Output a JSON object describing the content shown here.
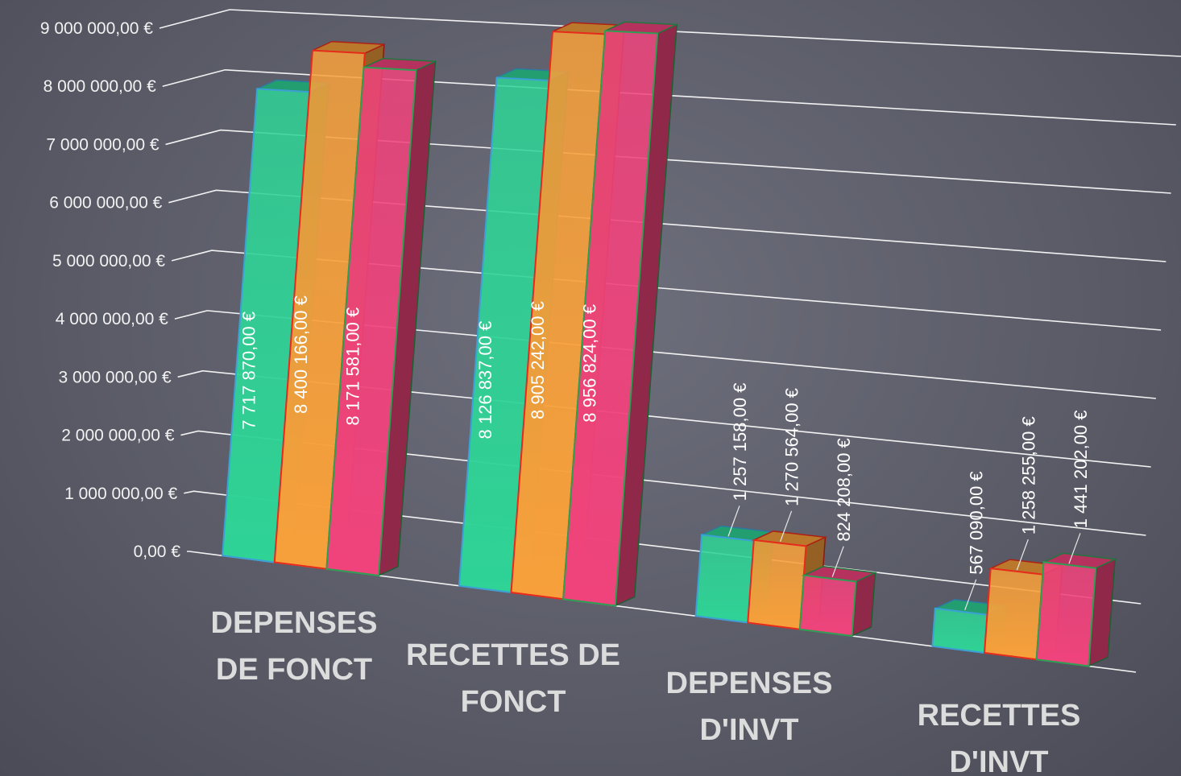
{
  "chart_data": {
    "type": "bar3d",
    "categories": [
      "DEPENSES DE FONCT",
      "RECETTES DE FONCT",
      "DEPENSES D'INVT",
      "RECETTES D'INVT"
    ],
    "series": [
      {
        "color": "#2fd396",
        "edge": "#3c9fd6",
        "values": [
          7717870,
          8126837,
          1257158,
          567090
        ],
        "value_labels": [
          "7 717 870,00 €",
          "8 126 837,00 €",
          "1 257 158,00 €",
          "567 090,00 €"
        ]
      },
      {
        "color": "#f7a03b",
        "edge": "#e62a1c",
        "values": [
          8400166,
          8905242,
          1270564,
          1258255
        ],
        "value_labels": [
          "8 400 166,00 €",
          "8 905 242,00 €",
          "1 270 564,00 €",
          "1 258 255,00 €"
        ]
      },
      {
        "color": "#f0437c",
        "edge": "#2e9e52",
        "values": [
          8171581,
          8956824,
          824208,
          1441202
        ],
        "value_labels": [
          "8 171 581,00 €",
          "8 956 824,00 €",
          "824 208,00 €",
          "1 441 202,00 €"
        ]
      }
    ],
    "ylim": [
      0,
      9000000
    ],
    "yticks": [
      {
        "value": 0,
        "label": "0,00 €"
      },
      {
        "value": 1000000,
        "label": "1 000 000,00 €"
      },
      {
        "value": 2000000,
        "label": "2 000 000,00 €"
      },
      {
        "value": 3000000,
        "label": "3 000 000,00 €"
      },
      {
        "value": 4000000,
        "label": "4 000 000,00 €"
      },
      {
        "value": 5000000,
        "label": "5 000 000,00 €"
      },
      {
        "value": 6000000,
        "label": "6 000 000,00 €"
      },
      {
        "value": 7000000,
        "label": "7 000 000,00 €"
      },
      {
        "value": 8000000,
        "label": "8 000 000,00 €"
      },
      {
        "value": 9000000,
        "label": "9 000 000,00 €"
      }
    ],
    "grid": true
  }
}
